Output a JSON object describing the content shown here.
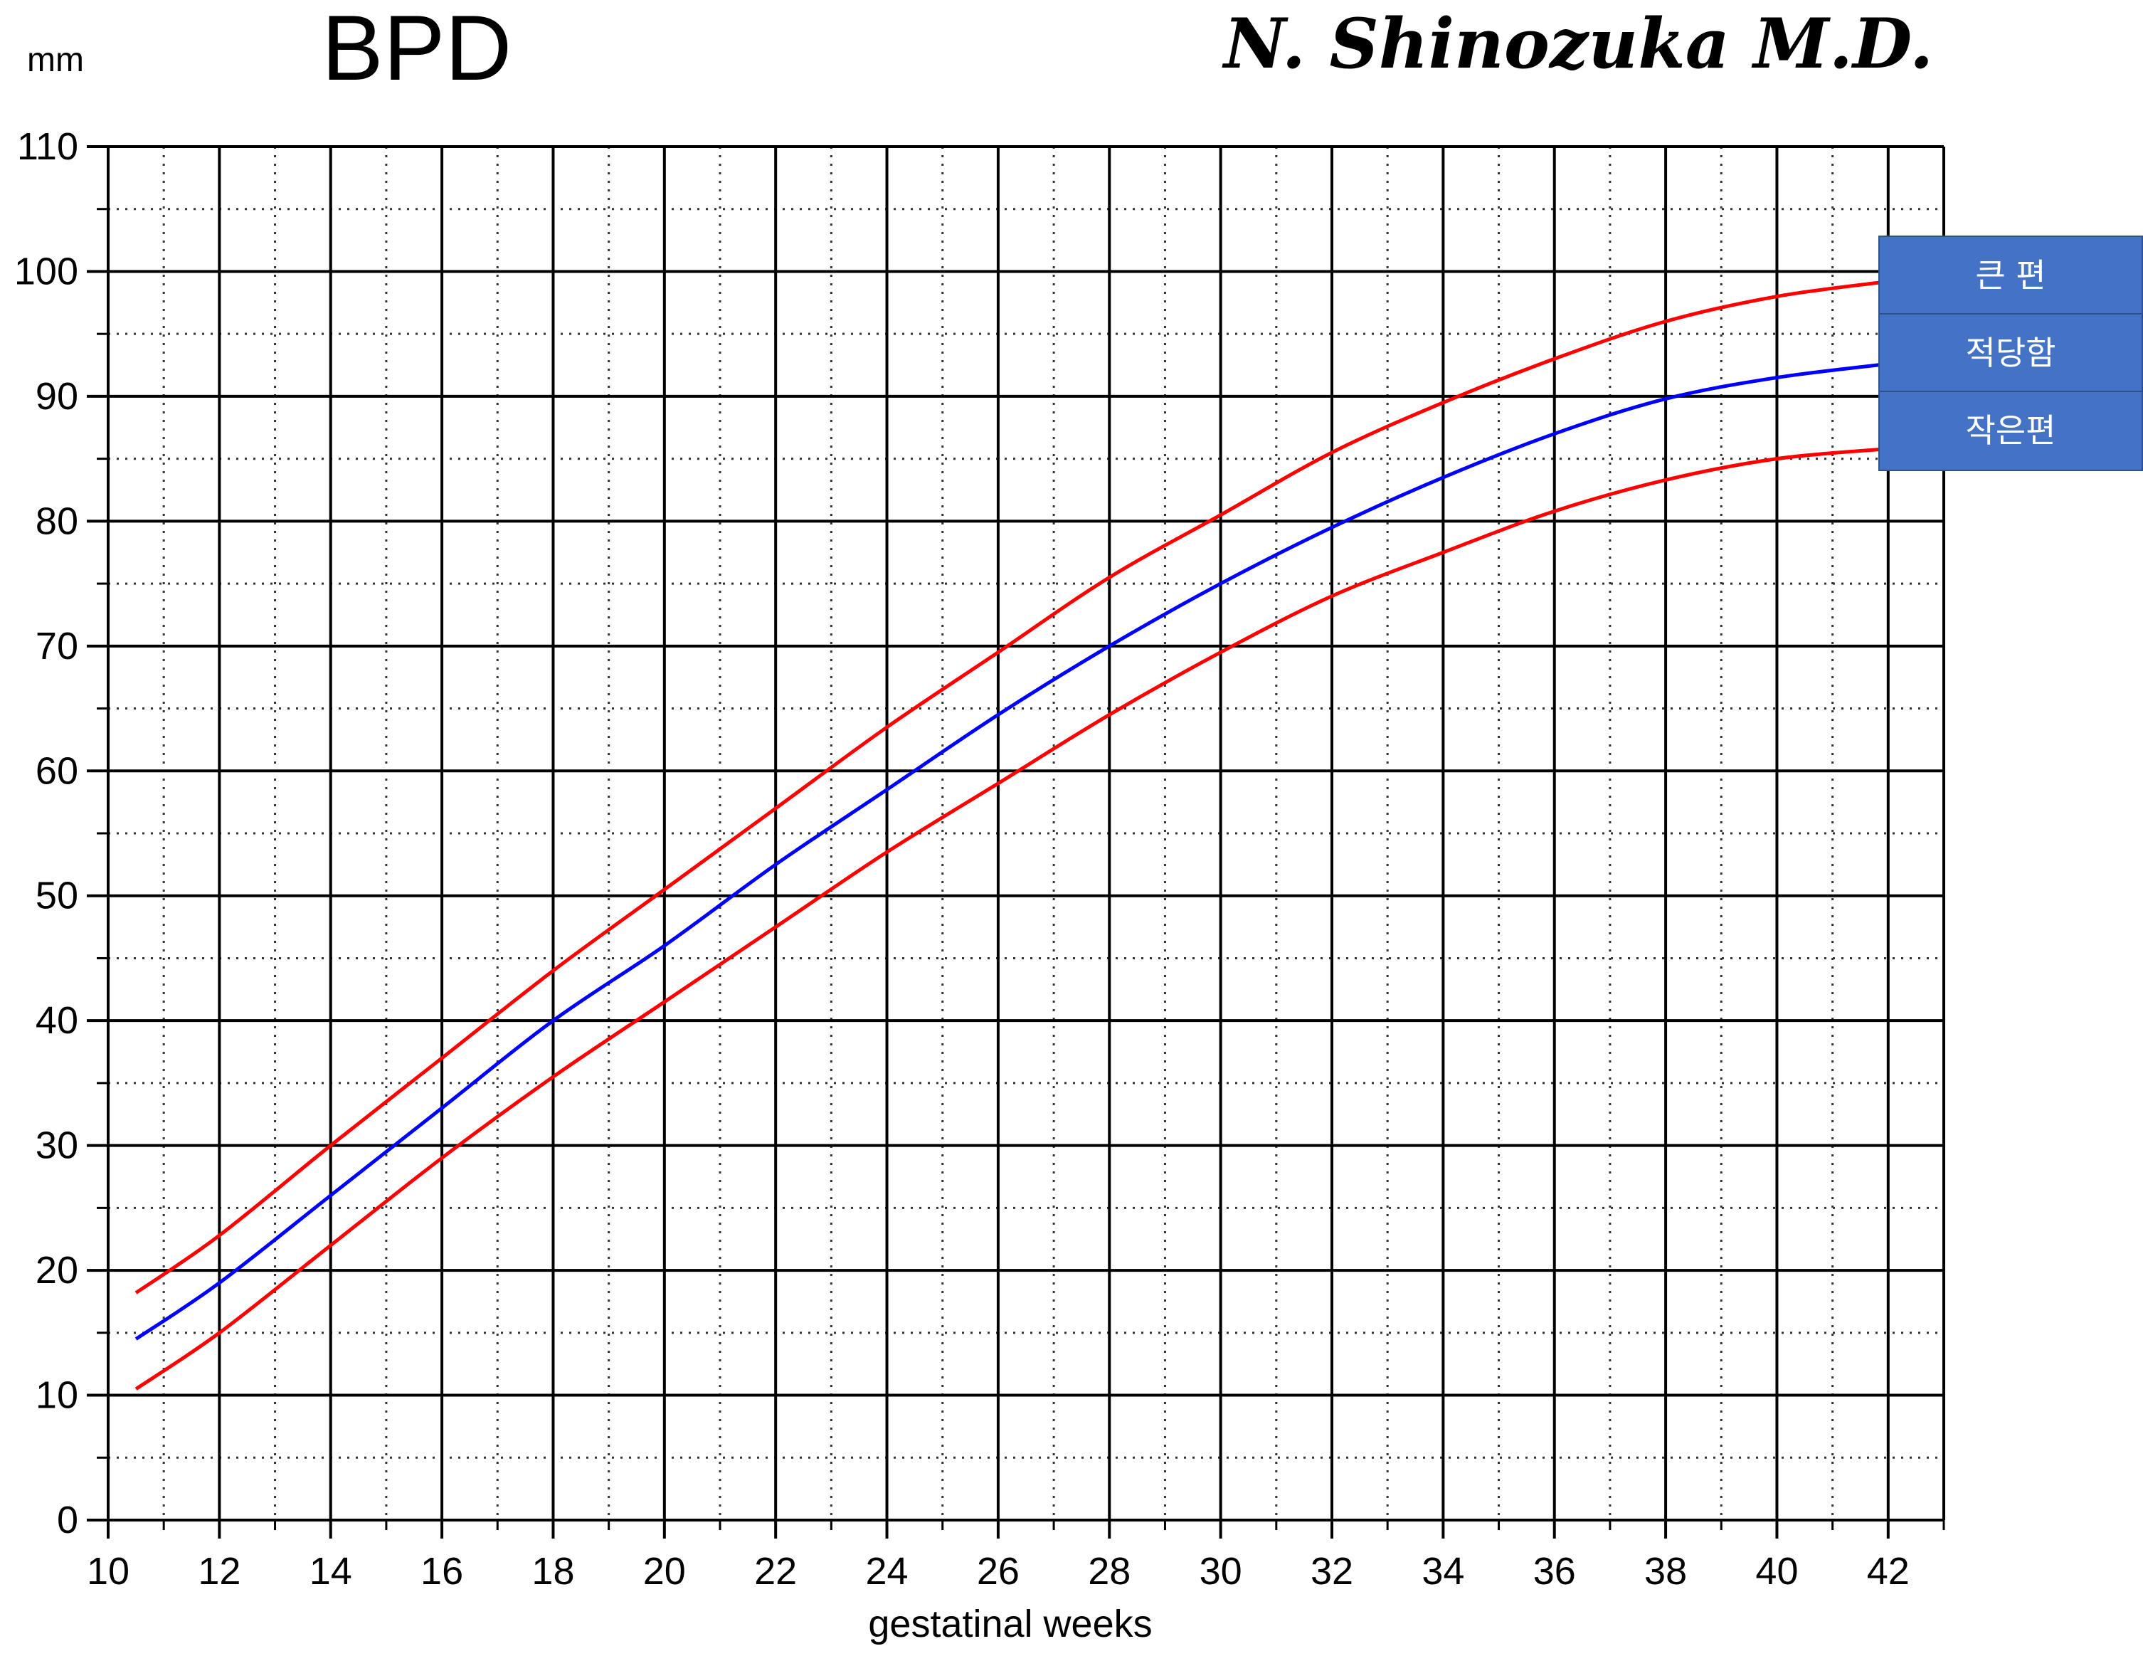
{
  "chart_data": {
    "type": "line",
    "title": "BPD",
    "author": "N. Shinozuka M.D.",
    "ylabel": "mm",
    "xlabel": "gestatinal weeks",
    "xlim": [
      10,
      43
    ],
    "ylim": [
      0,
      110
    ],
    "x_ticks": [
      10,
      12,
      14,
      16,
      18,
      20,
      22,
      24,
      26,
      28,
      30,
      32,
      34,
      36,
      38,
      40,
      42
    ],
    "y_ticks": [
      0,
      10,
      20,
      30,
      40,
      50,
      60,
      70,
      80,
      90,
      100,
      110
    ],
    "grid": true,
    "x": [
      10.5,
      12,
      14,
      16,
      18,
      20,
      22,
      24,
      26,
      28,
      30,
      32,
      34,
      36,
      38,
      40,
      42
    ],
    "series": [
      {
        "name": "큰 편",
        "color": "#ff0000",
        "values": [
          18.2,
          22.8,
          30.0,
          37.0,
          44.0,
          50.5,
          57.0,
          63.5,
          69.5,
          75.5,
          80.5,
          85.5,
          89.5,
          93.0,
          96.0,
          98.0,
          99.2
        ]
      },
      {
        "name": "적당함",
        "color": "#0000ff",
        "values": [
          14.5,
          19.0,
          26.0,
          33.0,
          40.0,
          46.0,
          52.5,
          58.5,
          64.5,
          70.0,
          75.0,
          79.5,
          83.5,
          87.0,
          89.8,
          91.5,
          92.6
        ]
      },
      {
        "name": "작은편",
        "color": "#ff0000",
        "values": [
          10.5,
          15.0,
          22.0,
          29.0,
          35.5,
          41.5,
          47.5,
          53.5,
          59.0,
          64.5,
          69.5,
          74.0,
          77.5,
          80.8,
          83.3,
          85.0,
          85.8
        ]
      }
    ]
  },
  "legend": {
    "items": [
      "큰 편",
      "적당함",
      "작은편"
    ]
  }
}
